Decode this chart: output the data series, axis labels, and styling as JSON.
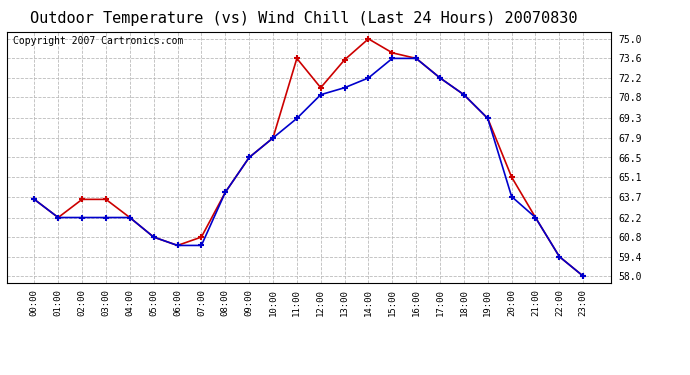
{
  "title": "Outdoor Temperature (vs) Wind Chill (Last 24 Hours) 20070830",
  "copyright": "Copyright 2007 Cartronics.com",
  "hours": [
    "00:00",
    "01:00",
    "02:00",
    "03:00",
    "04:00",
    "05:00",
    "06:00",
    "07:00",
    "08:00",
    "09:00",
    "10:00",
    "11:00",
    "12:00",
    "13:00",
    "14:00",
    "15:00",
    "16:00",
    "17:00",
    "18:00",
    "19:00",
    "20:00",
    "21:00",
    "22:00",
    "23:00"
  ],
  "temp": [
    63.5,
    62.2,
    63.5,
    63.5,
    62.2,
    60.8,
    60.2,
    60.8,
    64.0,
    66.5,
    67.9,
    73.6,
    71.5,
    73.5,
    75.0,
    74.0,
    73.6,
    72.2,
    71.0,
    69.3,
    65.1,
    62.2,
    59.4,
    58.0
  ],
  "windchill": [
    63.5,
    62.2,
    62.2,
    62.2,
    62.2,
    60.8,
    60.2,
    60.2,
    64.0,
    66.5,
    67.9,
    69.3,
    71.0,
    71.5,
    72.2,
    73.6,
    73.6,
    72.2,
    71.0,
    69.3,
    63.7,
    62.2,
    59.4,
    58.0
  ],
  "temp_color": "#cc0000",
  "windchill_color": "#0000cc",
  "background_color": "#ffffff",
  "grid_color": "#bbbbbb",
  "ylim": [
    57.5,
    75.5
  ],
  "yticks": [
    58.0,
    59.4,
    60.8,
    62.2,
    63.7,
    65.1,
    66.5,
    67.9,
    69.3,
    70.8,
    72.2,
    73.6,
    75.0
  ],
  "title_fontsize": 11,
  "copyright_fontsize": 7,
  "marker": "+",
  "markersize": 5,
  "linewidth": 1.2
}
